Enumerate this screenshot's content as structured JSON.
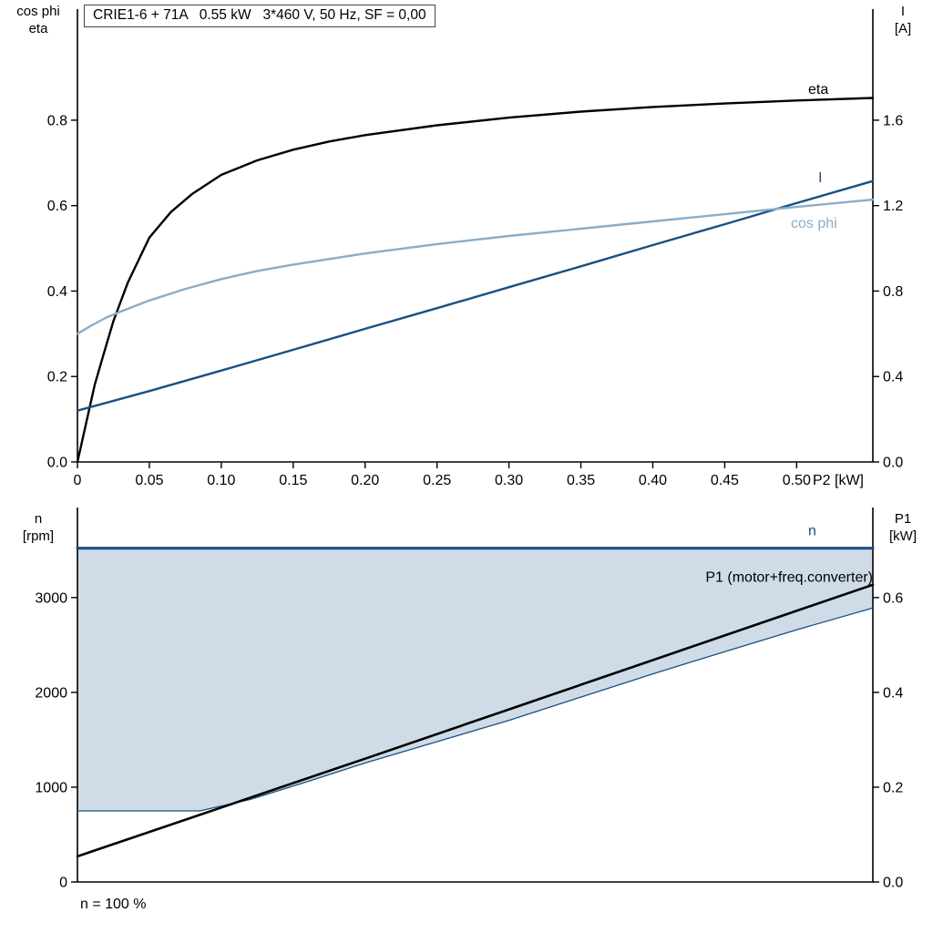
{
  "header": {
    "title_box": "CRIE1-6 + 71A   0.55 kW   3*460 V, 50 Hz, SF = 0,00"
  },
  "colors": {
    "black": "#000000",
    "dark_blue": "#1b4f82",
    "light_blue": "#8aadc8",
    "fill": "#cfdce8",
    "axis": "#000000"
  },
  "chart_data": [
    {
      "type": "line",
      "title": "CRIE1-6 + 71A   0.55 kW   3*460 V, 50 Hz, SF = 0,00",
      "x_axis": {
        "label": "P2 [kW]",
        "min": 0,
        "max": 0.553,
        "ticks": [
          0,
          0.05,
          0.1,
          0.15,
          0.2,
          0.25,
          0.3,
          0.35,
          0.4,
          0.45,
          0.5
        ],
        "tick_labels": [
          "0",
          "0.05",
          "0.10",
          "0.15",
          "0.20",
          "0.25",
          "0.30",
          "0.35",
          "0.40",
          "0.45",
          "0.50"
        ]
      },
      "y_left": {
        "label_lines": [
          "cos phi",
          "eta"
        ],
        "min": 0,
        "max": 1.06,
        "ticks": [
          0,
          0.2,
          0.4,
          0.6,
          0.8
        ],
        "tick_labels": [
          "0.0",
          "0.2",
          "0.4",
          "0.6",
          "0.8"
        ]
      },
      "y_right": {
        "label_lines": [
          "I",
          "[A]"
        ],
        "min": 0,
        "max": 2.12,
        "ticks": [
          0,
          0.4,
          0.8,
          1.2,
          1.6
        ],
        "tick_labels": [
          "0.0",
          "0.4",
          "0.8",
          "1.2",
          "1.6"
        ]
      },
      "series": [
        {
          "name": "eta",
          "axis": "left",
          "color": "black",
          "width": 2.4,
          "x": [
            0,
            0.004,
            0.008,
            0.012,
            0.018,
            0.025,
            0.035,
            0.05,
            0.065,
            0.08,
            0.1,
            0.125,
            0.15,
            0.175,
            0.2,
            0.25,
            0.3,
            0.35,
            0.4,
            0.45,
            0.5,
            0.553
          ],
          "y": [
            0,
            0.06,
            0.12,
            0.18,
            0.25,
            0.33,
            0.42,
            0.525,
            0.585,
            0.628,
            0.672,
            0.706,
            0.731,
            0.75,
            0.765,
            0.788,
            0.806,
            0.82,
            0.831,
            0.839,
            0.846,
            0.852
          ],
          "label": {
            "text": "eta",
            "x": 0.508,
            "y": 0.862,
            "anchor": "start",
            "color": "black"
          }
        },
        {
          "name": "current",
          "axis": "right",
          "color": "dark_blue",
          "width": 2.4,
          "x": [
            0,
            0.05,
            0.1,
            0.15,
            0.2,
            0.25,
            0.3,
            0.35,
            0.4,
            0.45,
            0.5,
            0.553
          ],
          "y": [
            0.24,
            0.332,
            0.428,
            0.525,
            0.623,
            0.72,
            0.818,
            0.916,
            1.015,
            1.113,
            1.212,
            1.315
          ],
          "label": {
            "text": "I",
            "x": 0.515,
            "y": 1.31,
            "anchor": "start",
            "color": "dark_blue"
          }
        },
        {
          "name": "cos-phi",
          "axis": "left",
          "color": "light_blue",
          "width": 2.4,
          "x": [
            0,
            0.01,
            0.02,
            0.03,
            0.05,
            0.075,
            0.1,
            0.125,
            0.15,
            0.2,
            0.25,
            0.3,
            0.35,
            0.4,
            0.45,
            0.5,
            0.553
          ],
          "y": [
            0.3,
            0.32,
            0.338,
            0.352,
            0.378,
            0.405,
            0.428,
            0.447,
            0.462,
            0.488,
            0.51,
            0.529,
            0.546,
            0.563,
            0.58,
            0.597,
            0.614
          ],
          "label": {
            "text": "cos phi",
            "x": 0.496,
            "y": 0.548,
            "anchor": "start",
            "color": "light_blue"
          }
        }
      ]
    },
    {
      "type": "line",
      "x_axis": {
        "label": "",
        "min": 0,
        "max": 0.553,
        "ticks": [],
        "tick_labels": []
      },
      "y_left": {
        "label_lines": [
          "n",
          "[rpm]"
        ],
        "min": 0,
        "max": 3950,
        "ticks": [
          0,
          1000,
          2000,
          3000
        ],
        "tick_labels": [
          "0",
          "1000",
          "2000",
          "3000"
        ]
      },
      "y_right": {
        "label_lines": [
          "P1",
          "[kW]"
        ],
        "min": 0,
        "max": 0.79,
        "ticks": [
          0,
          0.2,
          0.4,
          0.6
        ],
        "tick_labels": [
          "0.0",
          "0.2",
          "0.4",
          "0.6"
        ]
      },
      "series": [
        {
          "name": "speed-range",
          "kind": "area",
          "axis": "left",
          "color": "fill",
          "fill_to": 3520,
          "x": [
            0,
            0.085,
            0.12,
            0.16,
            0.2,
            0.25,
            0.3,
            0.35,
            0.4,
            0.45,
            0.5,
            0.553
          ],
          "y": [
            750,
            750,
            870,
            1060,
            1255,
            1480,
            1705,
            1950,
            2195,
            2430,
            2660,
            2890
          ]
        },
        {
          "name": "speed-range-min",
          "axis": "left",
          "color": "dark_blue",
          "width": 1.3,
          "x": [
            0,
            0.085,
            0.12,
            0.16,
            0.2,
            0.25,
            0.3,
            0.35,
            0.4,
            0.45,
            0.5,
            0.553
          ],
          "y": [
            750,
            750,
            870,
            1060,
            1255,
            1480,
            1705,
            1950,
            2195,
            2430,
            2660,
            2890
          ]
        },
        {
          "name": "p1",
          "axis": "right",
          "color": "black",
          "width": 2.6,
          "x": [
            0,
            0.1,
            0.2,
            0.3,
            0.4,
            0.5,
            0.553
          ],
          "y": [
            0.054,
            0.157,
            0.26,
            0.364,
            0.468,
            0.572,
            0.627
          ],
          "label": {
            "text": "P1 (motor+freq.converter)",
            "x": 0.553,
            "y": 0.633,
            "anchor": "end",
            "color": "black"
          }
        },
        {
          "name": "n-speed",
          "axis": "left",
          "color": "dark_blue",
          "width": 3.2,
          "x": [
            0,
            0.553
          ],
          "y": [
            3520,
            3520
          ],
          "label": {
            "text": "n",
            "x": 0.508,
            "y": 3655,
            "anchor": "start",
            "color": "dark_blue"
          }
        }
      ],
      "footnote": "n = 100 %"
    }
  ]
}
